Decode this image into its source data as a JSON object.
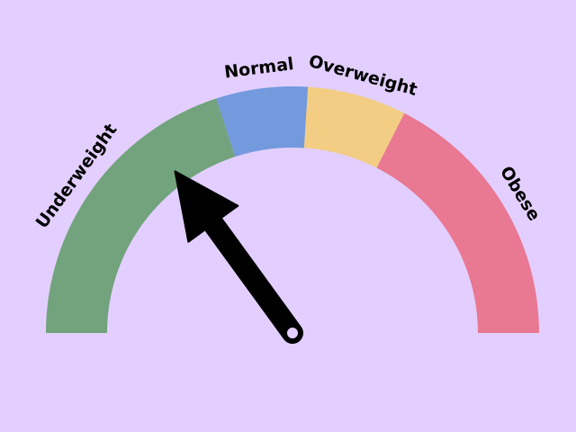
{
  "gauge": {
    "segments": [
      {
        "id": "underweight",
        "label": "Underweight",
        "start": 0,
        "end": 0.4,
        "color": "#72a37d"
      },
      {
        "id": "normal",
        "label": "Normal",
        "start": 0.4,
        "end": 0.52,
        "color": "#739adc"
      },
      {
        "id": "overweight",
        "label": "Overweight",
        "start": 0.52,
        "end": 0.65,
        "color": "#f2cd83"
      },
      {
        "id": "obese",
        "label": "Obese",
        "start": 0.65,
        "end": 1.0,
        "color": "#e97892"
      }
    ],
    "needle_value": 0.3,
    "needle_color": "#000000",
    "background": "#e3cfff"
  }
}
